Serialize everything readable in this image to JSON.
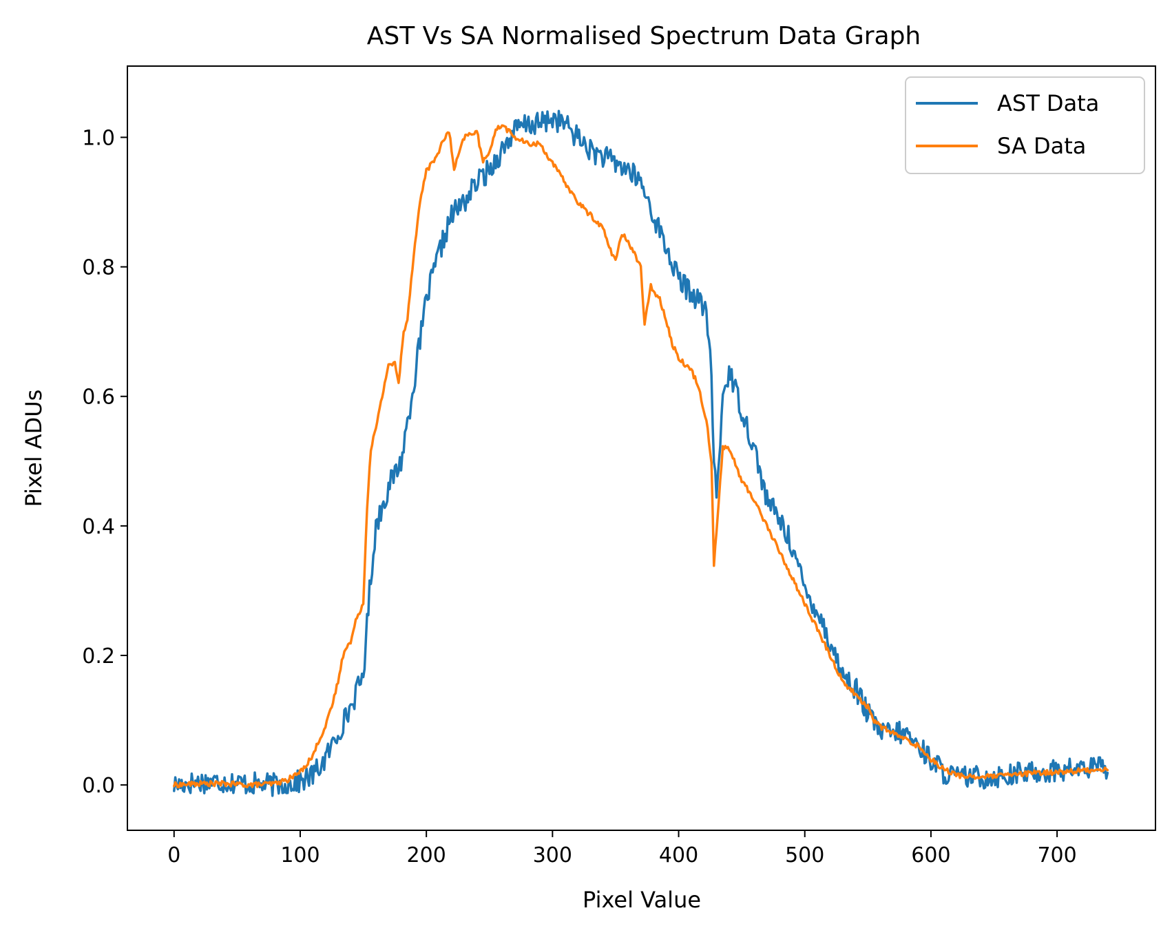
{
  "chart_data": {
    "type": "line",
    "title": "AST Vs SA  Normalised Spectrum Data Graph",
    "xlabel": "Pixel Value",
    "ylabel": "Pixel ADUs",
    "xlim": [
      -37,
      778
    ],
    "ylim": [
      -0.07,
      1.11
    ],
    "xticks": [
      0,
      100,
      200,
      300,
      400,
      500,
      600,
      700
    ],
    "yticks": [
      0.0,
      0.2,
      0.4,
      0.6,
      0.8,
      1.0
    ],
    "xtick_labels": [
      "0",
      "100",
      "200",
      "300",
      "400",
      "500",
      "600",
      "700"
    ],
    "ytick_labels": [
      "0.0",
      "0.2",
      "0.4",
      "0.6",
      "0.8",
      "1.0"
    ],
    "grid": false,
    "legend_position": "top-right",
    "series": [
      {
        "name": "AST Data",
        "color": "#1f77b4",
        "noise": 0.018,
        "x": [
          0,
          20,
          40,
          60,
          80,
          100,
          110,
          120,
          130,
          140,
          150,
          155,
          160,
          170,
          180,
          190,
          200,
          210,
          220,
          230,
          240,
          250,
          260,
          270,
          280,
          290,
          300,
          310,
          320,
          330,
          340,
          350,
          360,
          370,
          380,
          390,
          400,
          410,
          420,
          425,
          428,
          430,
          435,
          440,
          450,
          460,
          470,
          480,
          490,
          500,
          510,
          520,
          530,
          540,
          550,
          560,
          570,
          580,
          590,
          600,
          610,
          620,
          640,
          660,
          680,
          700,
          720,
          740
        ],
        "y": [
          0.0,
          0.005,
          0.005,
          0.002,
          0.0,
          0.005,
          0.015,
          0.04,
          0.08,
          0.12,
          0.17,
          0.3,
          0.4,
          0.46,
          0.5,
          0.62,
          0.75,
          0.82,
          0.88,
          0.9,
          0.93,
          0.95,
          0.98,
          1.01,
          1.02,
          1.02,
          1.03,
          1.02,
          1.0,
          0.98,
          0.97,
          0.96,
          0.95,
          0.93,
          0.88,
          0.83,
          0.78,
          0.76,
          0.74,
          0.68,
          0.5,
          0.44,
          0.6,
          0.64,
          0.58,
          0.52,
          0.44,
          0.41,
          0.37,
          0.3,
          0.27,
          0.22,
          0.17,
          0.15,
          0.11,
          0.08,
          0.08,
          0.08,
          0.06,
          0.04,
          0.02,
          0.012,
          0.012,
          0.015,
          0.02,
          0.022,
          0.025,
          0.028
        ]
      },
      {
        "name": "SA Data",
        "color": "#ff7f0e",
        "noise": 0.004,
        "x": [
          0,
          20,
          40,
          60,
          80,
          90,
          100,
          110,
          115,
          120,
          125,
          130,
          135,
          140,
          145,
          150,
          153,
          156,
          160,
          165,
          170,
          175,
          178,
          182,
          185,
          190,
          195,
          200,
          205,
          210,
          215,
          218,
          222,
          230,
          240,
          245,
          250,
          255,
          260,
          270,
          280,
          290,
          300,
          310,
          320,
          330,
          340,
          345,
          350,
          355,
          360,
          365,
          370,
          373,
          378,
          385,
          390,
          395,
          400,
          405,
          410,
          415,
          420,
          423,
          426,
          428,
          431,
          435,
          440,
          450,
          460,
          470,
          480,
          490,
          500,
          510,
          520,
          530,
          540,
          550,
          555,
          560,
          570,
          580,
          590,
          600,
          610,
          620,
          640,
          660,
          680,
          700,
          720,
          740
        ],
        "y": [
          0.0,
          0.002,
          0.002,
          0.0,
          0.002,
          0.008,
          0.02,
          0.045,
          0.07,
          0.09,
          0.12,
          0.16,
          0.21,
          0.22,
          0.26,
          0.28,
          0.43,
          0.52,
          0.55,
          0.6,
          0.65,
          0.65,
          0.62,
          0.7,
          0.72,
          0.82,
          0.9,
          0.95,
          0.96,
          0.98,
          1.0,
          1.01,
          0.95,
          1.0,
          1.01,
          0.96,
          0.98,
          1.01,
          1.02,
          1.0,
          0.99,
          0.99,
          0.96,
          0.93,
          0.9,
          0.88,
          0.86,
          0.83,
          0.81,
          0.85,
          0.84,
          0.82,
          0.8,
          0.71,
          0.77,
          0.75,
          0.72,
          0.68,
          0.66,
          0.65,
          0.64,
          0.62,
          0.58,
          0.55,
          0.5,
          0.34,
          0.42,
          0.52,
          0.52,
          0.47,
          0.44,
          0.4,
          0.36,
          0.32,
          0.28,
          0.24,
          0.2,
          0.16,
          0.14,
          0.12,
          0.1,
          0.09,
          0.08,
          0.07,
          0.06,
          0.04,
          0.025,
          0.015,
          0.012,
          0.015,
          0.018,
          0.02,
          0.022,
          0.025
        ]
      }
    ]
  }
}
